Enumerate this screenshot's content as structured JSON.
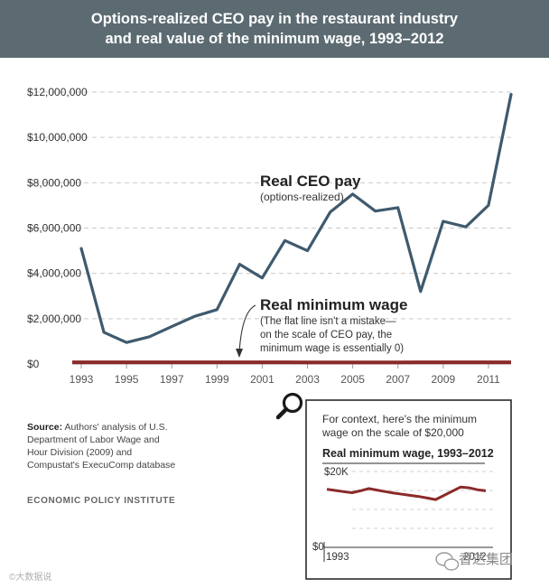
{
  "header": {
    "title_line1": "Options-realized CEO pay in the restaurant industry",
    "title_line2": "and real value of the minimum wage, 1993–2012",
    "bg_color": "#5c6b72"
  },
  "chart_data": [
    {
      "type": "line",
      "title": "Options-realized CEO pay in the restaurant industry and real value of the minimum wage, 1993–2012",
      "xlabel": "",
      "ylabel": "",
      "ylim": [
        0,
        12000000
      ],
      "xlim": [
        1993,
        2012
      ],
      "y_ticks": [
        0,
        2000000,
        4000000,
        6000000,
        8000000,
        10000000,
        12000000
      ],
      "y_tick_labels": [
        "$0",
        "$2,000,000",
        "$4,000,000",
        "$6,000,000",
        "$8,000,000",
        "$10,000,000",
        "$12,000,000"
      ],
      "x_ticks": [
        1993,
        1995,
        1997,
        1999,
        2001,
        2003,
        2005,
        2007,
        2009,
        2011
      ],
      "x_tick_labels": [
        "1993",
        "1995",
        "1997",
        "1999",
        "2001",
        "2003",
        "2005",
        "2007",
        "2009",
        "2011"
      ],
      "grid": "horizontal dashed",
      "x": [
        1993,
        1994,
        1995,
        1996,
        1997,
        1998,
        1999,
        2000,
        2001,
        2002,
        2003,
        2004,
        2005,
        2006,
        2007,
        2008,
        2009,
        2010,
        2011,
        2012
      ],
      "series": [
        {
          "name": "Real CEO pay",
          "note": "(options-realized)",
          "color": "#3f5a6e",
          "values": [
            5100000,
            1400000,
            950000,
            1200000,
            1650000,
            2100000,
            2400000,
            4400000,
            3800000,
            5450000,
            5000000,
            6700000,
            7500000,
            6750000,
            6900000,
            3200000,
            6300000,
            6050000,
            7000000,
            11900000
          ]
        },
        {
          "name": "Real minimum wage",
          "note_lines": [
            "(The flat line isn't a mistake—",
            "on the scale of CEO pay, the",
            "minimum wage is essentially 0)"
          ],
          "color": "#8b2a2a",
          "values": [
            15300,
            15000,
            14700,
            14400,
            14900,
            15500,
            15100,
            14700,
            14300,
            14000,
            13700,
            13400,
            13000,
            12600,
            13700,
            14800,
            15900,
            15700,
            15200,
            14900
          ]
        }
      ]
    },
    {
      "type": "line",
      "title": "Real minimum wage, 1993–2012",
      "context_line1": "For context, here's the minimum",
      "context_line2": "wage on the scale of $20,000",
      "ylim": [
        0,
        20000
      ],
      "y_tick_labels": [
        "$0",
        "$20K"
      ],
      "x_tick_labels": [
        "1993",
        "2012"
      ],
      "x": [
        1993,
        1994,
        1995,
        1996,
        1997,
        1998,
        1999,
        2000,
        2001,
        2002,
        2003,
        2004,
        2005,
        2006,
        2007,
        2008,
        2009,
        2010,
        2011,
        2012
      ],
      "series": [
        {
          "name": "Real minimum wage",
          "color": "#8b2a2a",
          "values": [
            15300,
            15000,
            14700,
            14400,
            14900,
            15500,
            15100,
            14700,
            14300,
            14000,
            13700,
            13400,
            13000,
            12600,
            13700,
            14800,
            15900,
            15700,
            15200,
            14900
          ]
        }
      ]
    }
  ],
  "source": {
    "label": "Source:",
    "text": "Authors' analysis of U.S. Department of Labor Wage and Hour Division (2009) and Compustat's ExecuComp database"
  },
  "publisher": "ECONOMIC POLICY INSTITUTE",
  "watermarks": {
    "left": "©大数据说",
    "right": "香达集团"
  },
  "icons": {
    "magnifier": "magnifier-icon",
    "wechat": "wechat-icon"
  }
}
